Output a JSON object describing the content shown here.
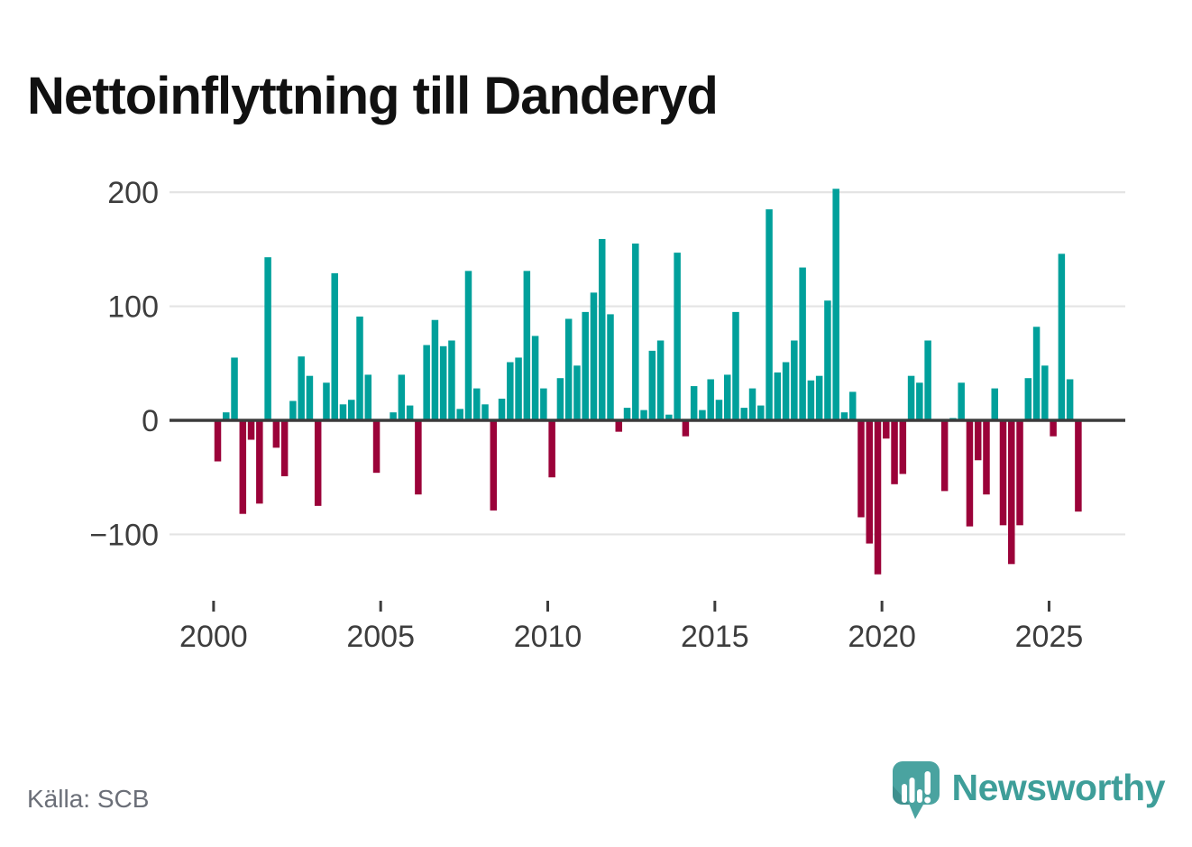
{
  "title": "Nettoinflyttning till Danderyd",
  "source": "Källa: SCB",
  "brand": "Newsworthy",
  "colors": {
    "positive_bar": "#00a09b",
    "negative_bar": "#9b0239",
    "axis_line": "#3b3b3b",
    "gridline": "#e4e4e4",
    "tick_label": "#3d3d3d",
    "source_text": "#6b6f78",
    "brand_teal": "#3e9e99",
    "logo_bubble": "#4aa3a0",
    "logo_bubble_shade": "#35827f",
    "title_text": "#111111"
  },
  "chart_data": {
    "type": "bar",
    "title": "Nettoinflyttning till Danderyd",
    "xlabel": "",
    "ylabel": "",
    "frequency": "quarterly",
    "start_period": "2000Q1",
    "end_period": "2025Q4",
    "y_ticks": [
      200,
      100,
      0,
      -100
    ],
    "y_tick_labels": [
      "200",
      "100",
      "0",
      "−100"
    ],
    "ylim": [
      -150,
      215
    ],
    "x_tick_years": [
      2000,
      2005,
      2010,
      2015,
      2020,
      2025
    ],
    "x_tick_labels": [
      "2000",
      "2005",
      "2010",
      "2015",
      "2020",
      "2025"
    ],
    "grid": "horizontal",
    "legend": "none",
    "series_name": "Nettoinflyttning per kvartal",
    "years": [
      {
        "year": 2000,
        "q": [
          -36,
          7,
          55,
          -82
        ]
      },
      {
        "year": 2001,
        "q": [
          -17,
          -73,
          143,
          -24
        ]
      },
      {
        "year": 2002,
        "q": [
          -49,
          17,
          56,
          39
        ]
      },
      {
        "year": 2003,
        "q": [
          -75,
          33,
          129,
          14
        ]
      },
      {
        "year": 2004,
        "q": [
          18,
          91,
          40,
          -46
        ]
      },
      {
        "year": 2005,
        "q": [
          0,
          7,
          40,
          13
        ]
      },
      {
        "year": 2006,
        "q": [
          -65,
          66,
          88,
          65
        ]
      },
      {
        "year": 2007,
        "q": [
          70,
          10,
          131,
          28
        ]
      },
      {
        "year": 2008,
        "q": [
          14,
          -79,
          19,
          51
        ]
      },
      {
        "year": 2009,
        "q": [
          55,
          131,
          74,
          28
        ]
      },
      {
        "year": 2010,
        "q": [
          -50,
          37,
          89,
          48
        ]
      },
      {
        "year": 2011,
        "q": [
          95,
          112,
          159,
          93
        ]
      },
      {
        "year": 2012,
        "q": [
          -10,
          11,
          155,
          9
        ]
      },
      {
        "year": 2013,
        "q": [
          61,
          70,
          5,
          147
        ]
      },
      {
        "year": 2014,
        "q": [
          -14,
          30,
          9,
          36
        ]
      },
      {
        "year": 2015,
        "q": [
          18,
          40,
          95,
          11
        ]
      },
      {
        "year": 2016,
        "q": [
          28,
          13,
          185,
          42
        ]
      },
      {
        "year": 2017,
        "q": [
          51,
          70,
          134,
          35
        ]
      },
      {
        "year": 2018,
        "q": [
          39,
          105,
          203,
          7
        ]
      },
      {
        "year": 2019,
        "q": [
          25,
          -85,
          -108,
          -135
        ]
      },
      {
        "year": 2020,
        "q": [
          -16,
          -56,
          -47,
          39
        ]
      },
      {
        "year": 2021,
        "q": [
          33,
          70,
          0,
          -62
        ]
      },
      {
        "year": 2022,
        "q": [
          2,
          33,
          -93,
          -35
        ]
      },
      {
        "year": 2023,
        "q": [
          -65,
          28,
          -92,
          -126
        ]
      },
      {
        "year": 2024,
        "q": [
          -92,
          37,
          82,
          48
        ]
      },
      {
        "year": 2025,
        "q": [
          -14,
          146,
          36,
          -80
        ]
      }
    ]
  }
}
